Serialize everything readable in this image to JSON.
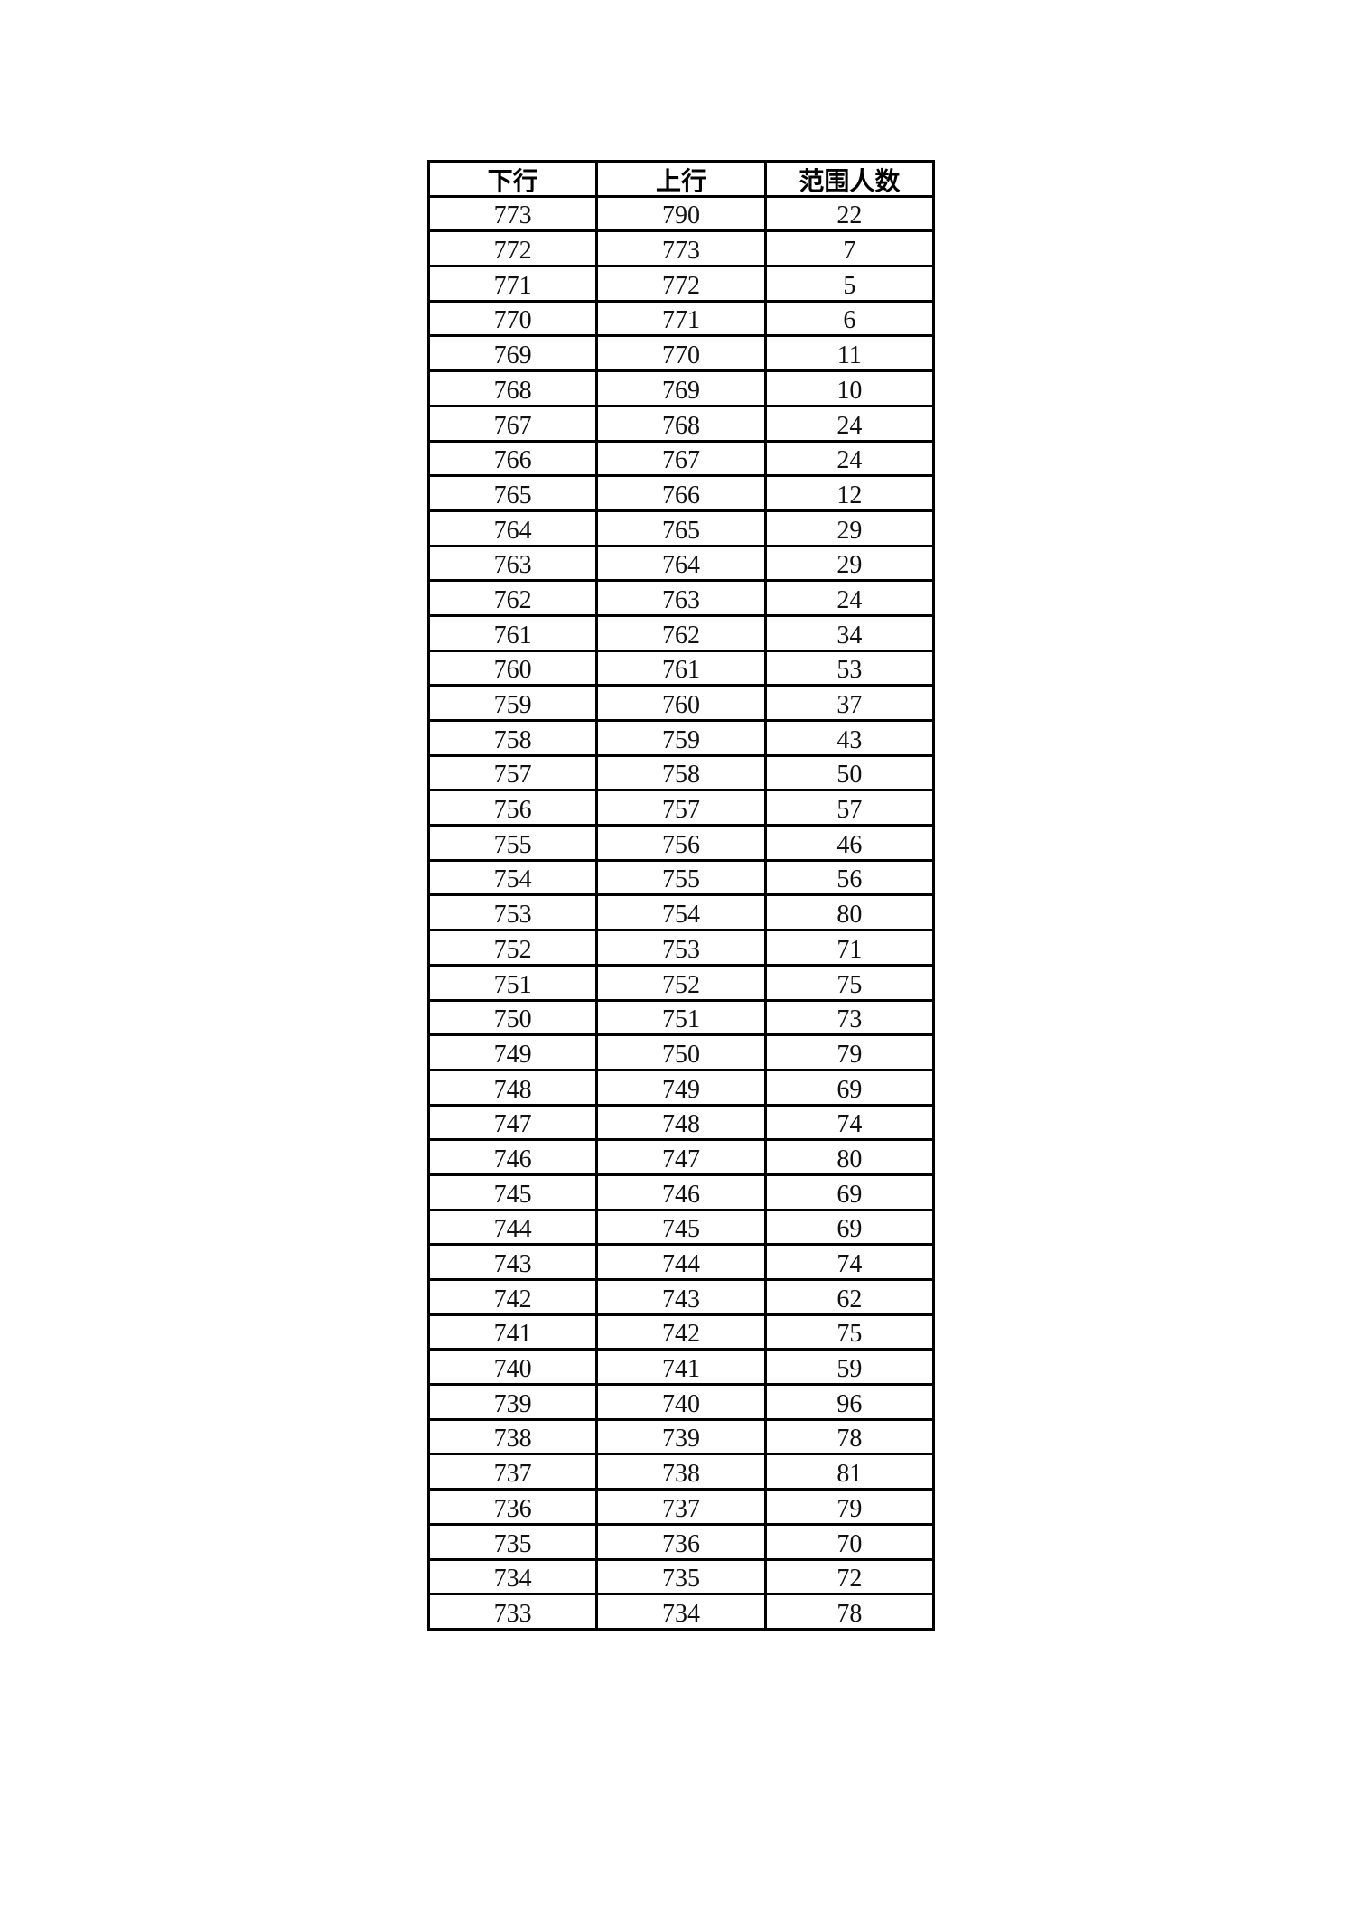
{
  "table": {
    "headers": [
      "下行",
      "上行",
      "范围人数"
    ],
    "rows": [
      [
        "773",
        "790",
        "22"
      ],
      [
        "772",
        "773",
        "7"
      ],
      [
        "771",
        "772",
        "5"
      ],
      [
        "770",
        "771",
        "6"
      ],
      [
        "769",
        "770",
        "11"
      ],
      [
        "768",
        "769",
        "10"
      ],
      [
        "767",
        "768",
        "24"
      ],
      [
        "766",
        "767",
        "24"
      ],
      [
        "765",
        "766",
        "12"
      ],
      [
        "764",
        "765",
        "29"
      ],
      [
        "763",
        "764",
        "29"
      ],
      [
        "762",
        "763",
        "24"
      ],
      [
        "761",
        "762",
        "34"
      ],
      [
        "760",
        "761",
        "53"
      ],
      [
        "759",
        "760",
        "37"
      ],
      [
        "758",
        "759",
        "43"
      ],
      [
        "757",
        "758",
        "50"
      ],
      [
        "756",
        "757",
        "57"
      ],
      [
        "755",
        "756",
        "46"
      ],
      [
        "754",
        "755",
        "56"
      ],
      [
        "753",
        "754",
        "80"
      ],
      [
        "752",
        "753",
        "71"
      ],
      [
        "751",
        "752",
        "75"
      ],
      [
        "750",
        "751",
        "73"
      ],
      [
        "749",
        "750",
        "79"
      ],
      [
        "748",
        "749",
        "69"
      ],
      [
        "747",
        "748",
        "74"
      ],
      [
        "746",
        "747",
        "80"
      ],
      [
        "745",
        "746",
        "69"
      ],
      [
        "744",
        "745",
        "69"
      ],
      [
        "743",
        "744",
        "74"
      ],
      [
        "742",
        "743",
        "62"
      ],
      [
        "741",
        "742",
        "75"
      ],
      [
        "740",
        "741",
        "59"
      ],
      [
        "739",
        "740",
        "96"
      ],
      [
        "738",
        "739",
        "78"
      ],
      [
        "737",
        "738",
        "81"
      ],
      [
        "736",
        "737",
        "79"
      ],
      [
        "735",
        "736",
        "70"
      ],
      [
        "734",
        "735",
        "72"
      ],
      [
        "733",
        "734",
        "78"
      ]
    ]
  }
}
